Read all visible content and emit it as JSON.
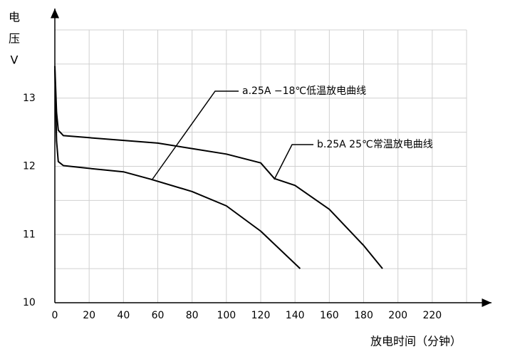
{
  "chart_data": {
    "type": "line",
    "xlabel": "放电时间（分钟）",
    "ylabel_lines": [
      "电",
      "压",
      "V"
    ],
    "xlim": [
      0,
      240
    ],
    "ylim": [
      10,
      14
    ],
    "xticks": [
      0,
      20,
      40,
      60,
      80,
      100,
      120,
      140,
      160,
      180,
      200,
      220
    ],
    "yticks": [
      10,
      11,
      12,
      13
    ],
    "y_minor_grid": [
      10.5,
      11.5,
      12.5,
      13.5
    ],
    "grid": true,
    "series": [
      {
        "name": "a.25A −18℃低温放电曲线",
        "color": "#000000",
        "x": [
          0,
          1,
          2,
          5,
          20,
          40,
          56,
          80,
          100,
          120,
          143
        ],
        "values": [
          13.42,
          12.37,
          12.07,
          12.01,
          11.97,
          11.92,
          11.81,
          11.63,
          11.42,
          11.05,
          10.5
        ]
      },
      {
        "name": "b.25A 25℃常温放电曲线",
        "color": "#000000",
        "x": [
          0,
          1,
          2,
          5,
          20,
          60,
          80,
          100,
          120,
          128,
          140,
          160,
          180,
          191
        ],
        "values": [
          13.47,
          12.79,
          12.53,
          12.45,
          12.42,
          12.34,
          12.26,
          12.18,
          12.05,
          11.82,
          11.72,
          11.37,
          10.84,
          10.5
        ]
      }
    ]
  }
}
